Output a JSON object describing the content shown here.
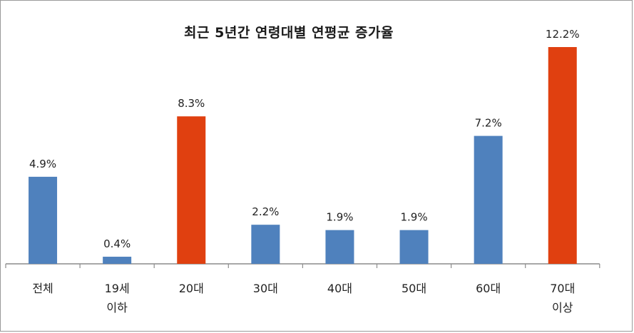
{
  "chart_data": {
    "type": "bar",
    "title": "최근 5년간 연령대별 연평균 증가율",
    "categories": [
      [
        "전체"
      ],
      [
        "19세",
        "이하"
      ],
      [
        "20대"
      ],
      [
        "30대"
      ],
      [
        "40대"
      ],
      [
        "50대"
      ],
      [
        "60대"
      ],
      [
        "70대",
        "이상"
      ]
    ],
    "values": [
      4.9,
      0.4,
      8.3,
      2.2,
      1.9,
      1.9,
      7.2,
      12.2
    ],
    "value_labels": [
      "4.9%",
      "0.4%",
      "8.3%",
      "2.2%",
      "1.9%",
      "1.9%",
      "7.2%",
      "12.2%"
    ],
    "highlight": [
      false,
      false,
      true,
      false,
      false,
      false,
      false,
      true
    ],
    "colors": {
      "normal": "#4f81bd",
      "highlight": "#e04010",
      "axis": "#8c8c8c"
    },
    "ylim": [
      0,
      12.2
    ],
    "grid": false,
    "xlabel": "",
    "ylabel": ""
  }
}
